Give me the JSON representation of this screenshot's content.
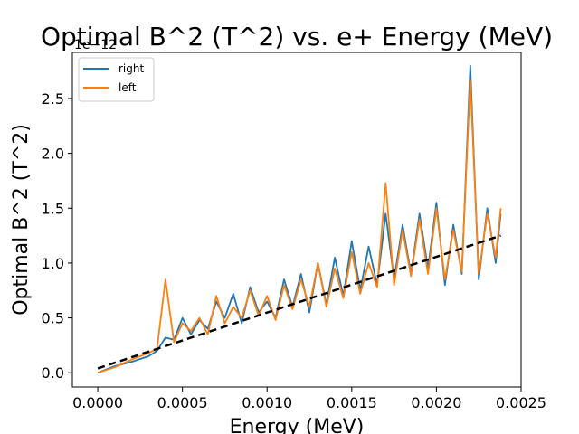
{
  "chart_data": {
    "type": "line",
    "title": "Optimal B^2 (T^2) vs. e+ Energy (MeV)",
    "xlabel": "Energy (MeV)",
    "ylabel": "Optimal B^2 (T^2)",
    "y_offset_label": "1e−12",
    "xlim": [
      -0.00015,
      0.0025
    ],
    "ylim": [
      -0.13,
      2.92
    ],
    "xticks": [
      0.0,
      0.0005,
      0.001,
      0.0015,
      0.002,
      0.0025
    ],
    "xtick_labels": [
      "0.0000",
      "0.0005",
      "0.0010",
      "0.0015",
      "0.0020",
      "0.0025"
    ],
    "yticks": [
      0.0,
      0.5,
      1.0,
      1.5,
      2.0,
      2.5
    ],
    "ytick_labels": [
      "0.0",
      "0.5",
      "1.0",
      "1.5",
      "2.0",
      "2.5"
    ],
    "grid": false,
    "legend_position": "upper-left",
    "series": [
      {
        "name": "right",
        "color": "#1f77b4",
        "x": [
          0.0,
          0.0001,
          0.0002,
          0.0003,
          0.00035,
          0.0004,
          0.00045,
          0.0005,
          0.00055,
          0.0006,
          0.00065,
          0.0007,
          0.00075,
          0.0008,
          0.00085,
          0.0009,
          0.00095,
          0.001,
          0.00105,
          0.0011,
          0.00115,
          0.0012,
          0.00125,
          0.0013,
          0.00135,
          0.0014,
          0.00145,
          0.0015,
          0.00155,
          0.0016,
          0.00165,
          0.0017,
          0.00175,
          0.0018,
          0.00185,
          0.0019,
          0.00195,
          0.002,
          0.00205,
          0.0021,
          0.00215,
          0.0022,
          0.00225,
          0.0023,
          0.00235,
          0.00238
        ],
        "values": [
          0.0,
          0.06,
          0.1,
          0.15,
          0.2,
          0.32,
          0.3,
          0.5,
          0.35,
          0.48,
          0.4,
          0.65,
          0.5,
          0.72,
          0.45,
          0.78,
          0.55,
          0.65,
          0.5,
          0.85,
          0.6,
          0.9,
          0.55,
          1.0,
          0.62,
          1.05,
          0.7,
          1.2,
          0.75,
          1.15,
          0.8,
          1.45,
          0.85,
          1.35,
          0.9,
          1.45,
          0.95,
          1.55,
          0.8,
          1.35,
          0.9,
          2.8,
          0.85,
          1.5,
          1.0,
          1.45
        ]
      },
      {
        "name": "left",
        "color": "#ff7f0e",
        "x": [
          0.0,
          0.0001,
          0.0002,
          0.0003,
          0.00035,
          0.0004,
          0.00045,
          0.0005,
          0.00055,
          0.0006,
          0.00065,
          0.0007,
          0.00075,
          0.0008,
          0.00085,
          0.0009,
          0.00095,
          0.001,
          0.00105,
          0.0011,
          0.00115,
          0.0012,
          0.00125,
          0.0013,
          0.00135,
          0.0014,
          0.00145,
          0.0015,
          0.00155,
          0.0016,
          0.00165,
          0.0017,
          0.00175,
          0.0018,
          0.00185,
          0.0019,
          0.00195,
          0.002,
          0.00205,
          0.0021,
          0.00215,
          0.0022,
          0.00225,
          0.0023,
          0.00235,
          0.00238
        ],
        "values": [
          0.0,
          0.05,
          0.12,
          0.18,
          0.22,
          0.85,
          0.28,
          0.45,
          0.38,
          0.5,
          0.35,
          0.7,
          0.45,
          0.6,
          0.5,
          0.75,
          0.52,
          0.7,
          0.48,
          0.8,
          0.58,
          0.85,
          0.6,
          1.0,
          0.6,
          0.95,
          0.68,
          1.1,
          0.72,
          1.0,
          0.78,
          1.73,
          0.8,
          1.3,
          0.88,
          1.4,
          0.9,
          1.5,
          0.85,
          1.3,
          0.92,
          2.67,
          0.9,
          1.45,
          1.05,
          1.5
        ]
      },
      {
        "name": "",
        "color": "#000000",
        "dashed": true,
        "x": [
          0.0,
          0.00238
        ],
        "values": [
          0.04,
          1.25
        ]
      }
    ]
  }
}
